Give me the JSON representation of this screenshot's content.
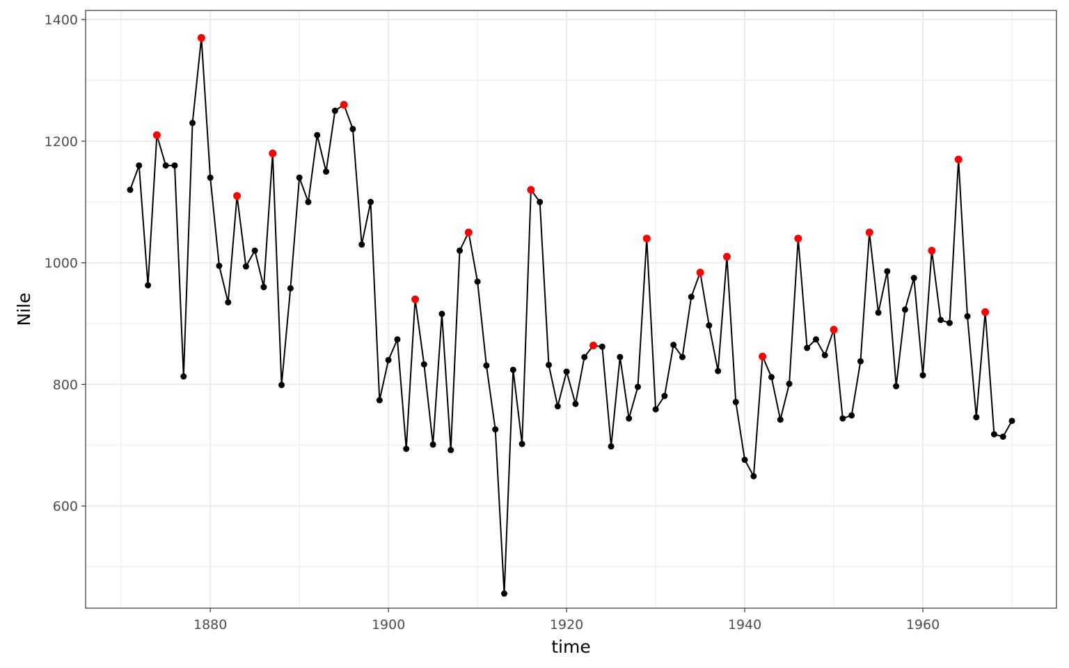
{
  "chart_data": {
    "type": "line",
    "title": "",
    "xlabel": "time",
    "ylabel": "Nile",
    "xlim": [
      1866,
      1975
    ],
    "ylim": [
      432,
      1415
    ],
    "x_ticks": [
      1880,
      1900,
      1920,
      1940,
      1960
    ],
    "x_tick_labels": [
      "1880",
      "1900",
      "1920",
      "1940",
      "1960"
    ],
    "y_ticks": [
      600,
      800,
      1000,
      1200,
      1400
    ],
    "y_tick_labels": [
      "600",
      "800",
      "1000",
      "1200",
      "1400"
    ],
    "grid": true,
    "legend": "none",
    "colors": {
      "line": "#000000",
      "point": "#000000",
      "highlight": "#ff0000",
      "grid": "#ebebeb",
      "panel_border": "#333333"
    },
    "series": [
      {
        "x": [
          1871,
          1872,
          1873,
          1874,
          1875,
          1876,
          1877,
          1878,
          1879,
          1880,
          1881,
          1882,
          1883,
          1884,
          1885,
          1886,
          1887,
          1888,
          1889,
          1890,
          1891,
          1892,
          1893,
          1894,
          1895,
          1896,
          1897,
          1898,
          1899,
          1900,
          1901,
          1902,
          1903,
          1904,
          1905,
          1906,
          1907,
          1908,
          1909,
          1910,
          1911,
          1912,
          1913,
          1914,
          1915,
          1916,
          1917,
          1918,
          1919,
          1920,
          1921,
          1922,
          1923,
          1924,
          1925,
          1926,
          1927,
          1928,
          1929,
          1930,
          1931,
          1932,
          1933,
          1934,
          1935,
          1936,
          1937,
          1938,
          1939,
          1940,
          1941,
          1942,
          1943,
          1944,
          1945,
          1946,
          1947,
          1948,
          1949,
          1950,
          1951,
          1952,
          1953,
          1954,
          1955,
          1956,
          1957,
          1958,
          1959,
          1960,
          1961,
          1962,
          1963,
          1964,
          1965,
          1966,
          1967,
          1968,
          1969,
          1970
        ],
        "y": [
          1120,
          1160,
          963,
          1210,
          1160,
          1160,
          813,
          1230,
          1370,
          1140,
          995,
          935,
          1110,
          994,
          1020,
          960,
          1180,
          799,
          958,
          1140,
          1100,
          1210,
          1150,
          1250,
          1260,
          1220,
          1030,
          1100,
          774,
          840,
          874,
          694,
          940,
          833,
          701,
          916,
          692,
          1020,
          1050,
          969,
          831,
          726,
          456,
          824,
          702,
          1120,
          1100,
          832,
          764,
          821,
          768,
          845,
          864,
          862,
          698,
          845,
          744,
          796,
          1040,
          759,
          781,
          865,
          845,
          944,
          984,
          897,
          822,
          1010,
          771,
          676,
          649,
          846,
          812,
          742,
          801,
          1040,
          860,
          874,
          848,
          890,
          744,
          749,
          838,
          1050,
          918,
          986,
          797,
          923,
          975,
          815,
          1020,
          906,
          901,
          1170,
          912,
          746,
          919,
          718,
          714,
          740
        ],
        "highlight_x": [
          1874,
          1879,
          1883,
          1887,
          1895,
          1903,
          1909,
          1916,
          1923,
          1929,
          1935,
          1938,
          1942,
          1946,
          1950,
          1954,
          1961,
          1964,
          1967
        ]
      }
    ]
  }
}
